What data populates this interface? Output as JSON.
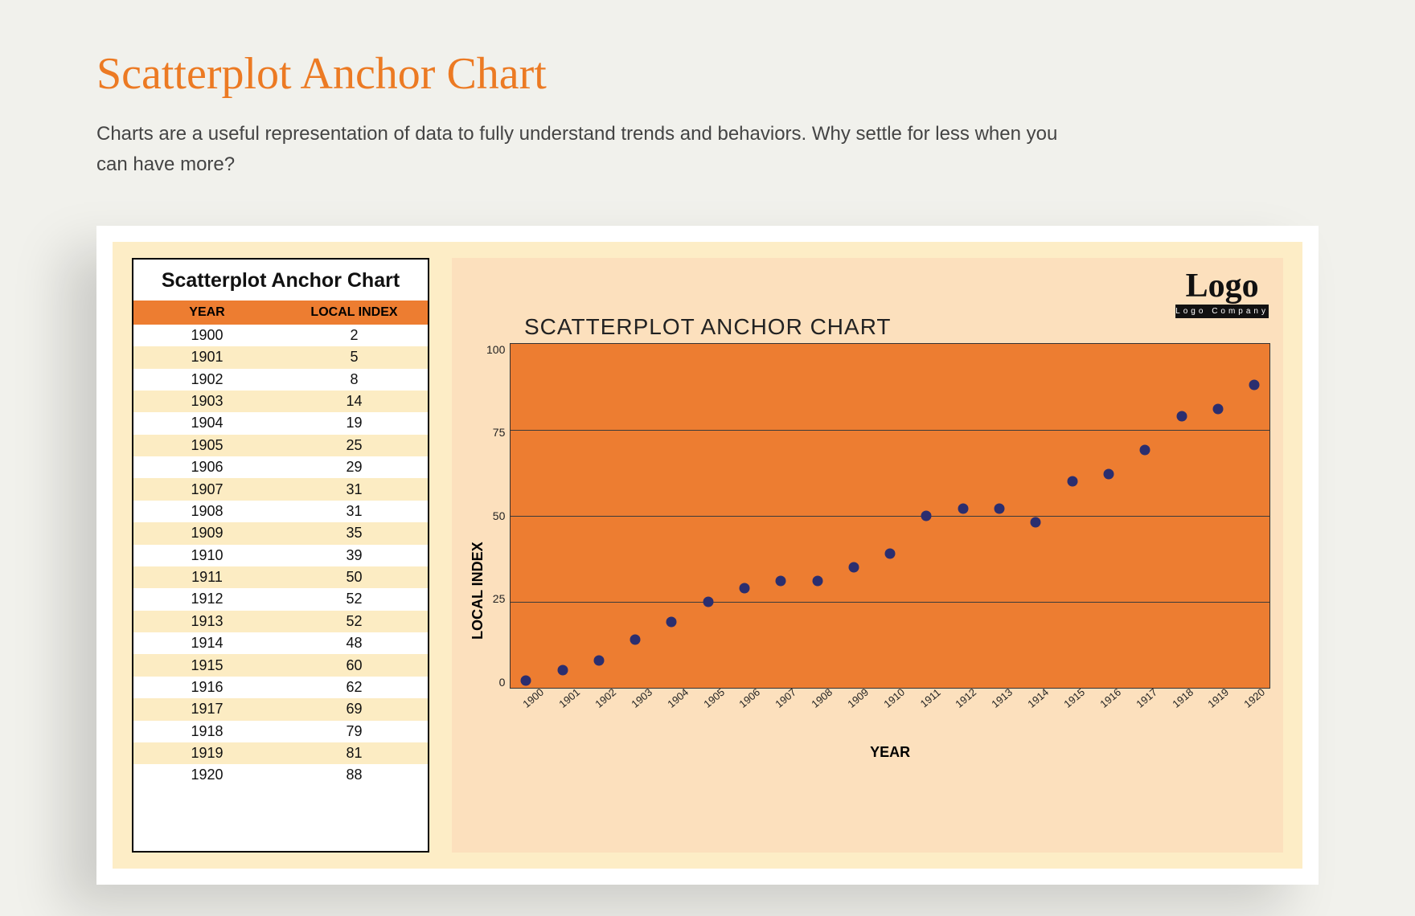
{
  "page": {
    "title": "Scatterplot Anchor Chart",
    "subtitle": "Charts are a useful representation of data to fully understand trends and behaviors. Why settle for less when you can have more?"
  },
  "table": {
    "title": "Scatterplot Anchor Chart",
    "col_year": "YEAR",
    "col_value": "LOCAL INDEX",
    "stripe_color": "#fcecc3",
    "header_bg": "#ed7d31",
    "rows": [
      {
        "year": "1900",
        "value": "2"
      },
      {
        "year": "1901",
        "value": "5"
      },
      {
        "year": "1902",
        "value": "8"
      },
      {
        "year": "1903",
        "value": "14"
      },
      {
        "year": "1904",
        "value": "19"
      },
      {
        "year": "1905",
        "value": "25"
      },
      {
        "year": "1906",
        "value": "29"
      },
      {
        "year": "1907",
        "value": "31"
      },
      {
        "year": "1908",
        "value": "31"
      },
      {
        "year": "1909",
        "value": "35"
      },
      {
        "year": "1910",
        "value": "39"
      },
      {
        "year": "1911",
        "value": "50"
      },
      {
        "year": "1912",
        "value": "52"
      },
      {
        "year": "1913",
        "value": "52"
      },
      {
        "year": "1914",
        "value": "48"
      },
      {
        "year": "1915",
        "value": "60"
      },
      {
        "year": "1916",
        "value": "62"
      },
      {
        "year": "1917",
        "value": "69"
      },
      {
        "year": "1918",
        "value": "79"
      },
      {
        "year": "1919",
        "value": "81"
      },
      {
        "year": "1920",
        "value": "88"
      }
    ]
  },
  "chart": {
    "type": "scatter",
    "title": "SCATTERPLOT ANCHOR CHART",
    "logo_main": "Logo",
    "logo_sub": "Logo Company",
    "x_label": "YEAR",
    "y_label": "LOCAL INDEX",
    "plot_bg": "#ed7d31",
    "panel_bg": "#fce0bd",
    "grid_color": "#3a3a3a",
    "marker_color": "#2b2e6f",
    "marker_size": 13,
    "ylim": [
      0,
      100
    ],
    "ytick_step": 25,
    "yticks": [
      "100",
      "75",
      "50",
      "25",
      "0"
    ],
    "xlim": [
      1900,
      1920
    ],
    "xticks": [
      "1900",
      "1901",
      "1902",
      "1903",
      "1904",
      "1905",
      "1906",
      "1907",
      "1908",
      "1909",
      "1910",
      "1911",
      "1912",
      "1913",
      "1914",
      "1915",
      "1916",
      "1917",
      "1918",
      "1919",
      "1920"
    ],
    "points": [
      {
        "x": 1900,
        "y": 2
      },
      {
        "x": 1901,
        "y": 5
      },
      {
        "x": 1902,
        "y": 8
      },
      {
        "x": 1903,
        "y": 14
      },
      {
        "x": 1904,
        "y": 19
      },
      {
        "x": 1905,
        "y": 25
      },
      {
        "x": 1906,
        "y": 29
      },
      {
        "x": 1907,
        "y": 31
      },
      {
        "x": 1908,
        "y": 31
      },
      {
        "x": 1909,
        "y": 35
      },
      {
        "x": 1910,
        "y": 39
      },
      {
        "x": 1911,
        "y": 50
      },
      {
        "x": 1912,
        "y": 52
      },
      {
        "x": 1913,
        "y": 52
      },
      {
        "x": 1914,
        "y": 48
      },
      {
        "x": 1915,
        "y": 60
      },
      {
        "x": 1916,
        "y": 62
      },
      {
        "x": 1917,
        "y": 69
      },
      {
        "x": 1918,
        "y": 79
      },
      {
        "x": 1919,
        "y": 81
      },
      {
        "x": 1920,
        "y": 88
      }
    ]
  }
}
